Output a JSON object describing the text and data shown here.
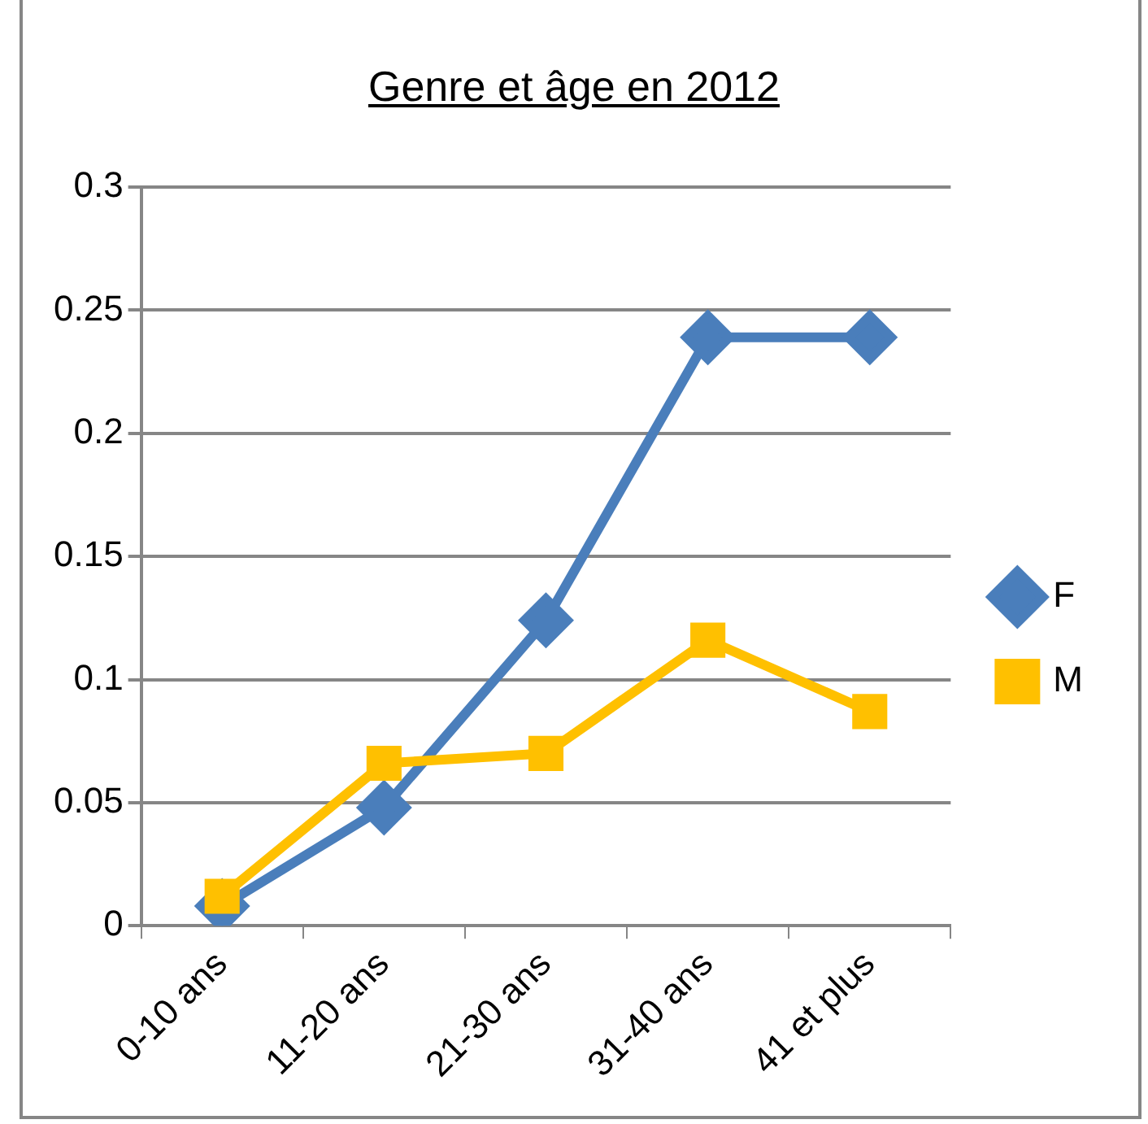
{
  "chart_data": {
    "type": "line",
    "title": "Genre et âge en 2012",
    "categories": [
      "0-10 ans",
      "11-20 ans",
      "21-30 ans",
      "31-40 ans",
      "41 et plus"
    ],
    "series": [
      {
        "name": "F",
        "color": "#4a7ebb",
        "marker": "diamond",
        "values": [
          0.008,
          0.048,
          0.124,
          0.239,
          0.239
        ]
      },
      {
        "name": "M",
        "color": "#ffc000",
        "marker": "square",
        "values": [
          0.012,
          0.066,
          0.07,
          0.116,
          0.087
        ]
      }
    ],
    "ylim": [
      0,
      0.3
    ],
    "yticks": [
      0,
      0.05,
      0.1,
      0.15,
      0.2,
      0.25,
      0.3
    ],
    "grid": "y",
    "legend": "right",
    "line_style": "solid"
  }
}
